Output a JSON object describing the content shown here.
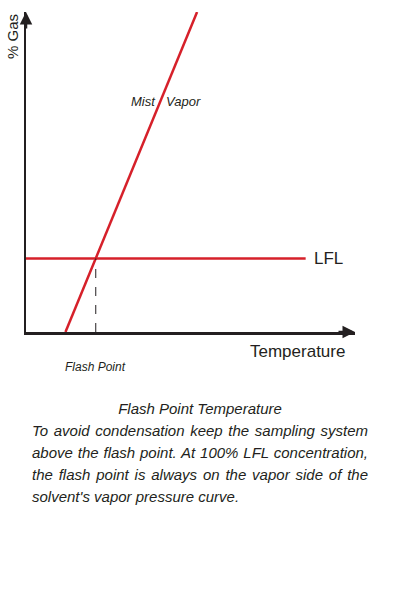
{
  "chart_data": {
    "type": "line",
    "xlabel": "Temperature",
    "ylabel": "% Gas",
    "xlim": [
      0,
      100
    ],
    "ylim": [
      0,
      100
    ],
    "tick_labels": false,
    "grid": false,
    "series": [
      {
        "x": [
          12,
          52
        ],
        "values": [
          0,
          100
        ],
        "color": "#d6202a"
      },
      {
        "x": [
          0,
          85
        ],
        "values": [
          23,
          23
        ],
        "color": "#d6202a"
      }
    ],
    "annotations": [
      {
        "text": "Mist",
        "x": 40,
        "y": 72
      },
      {
        "text": "Vapor",
        "x": 42,
        "y": 72
      },
      {
        "text": "LFL",
        "x": 87,
        "y": 23
      }
    ],
    "flash_point": {
      "label": "Flash Point",
      "x": 21.2,
      "y": 23,
      "line_style": "dashed"
    },
    "caption": {
      "title": "Flash Point Temperature",
      "text": "To avoid condensation keep the sampling system above the flash point. At 100% LFL concentration, the flash point is always on the vapor side of the solvent's vapor pressure curve."
    }
  }
}
